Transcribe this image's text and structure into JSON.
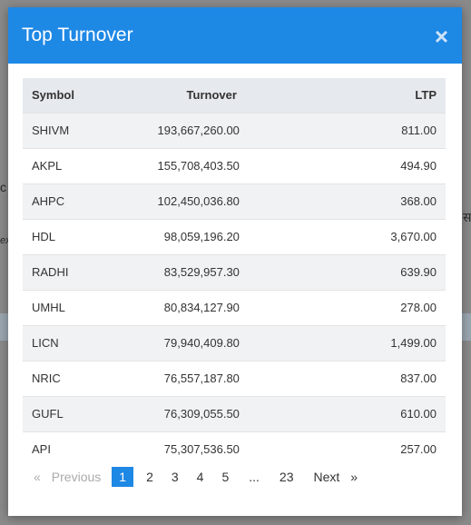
{
  "modal": {
    "title": "Top Turnover",
    "close_symbol": "×"
  },
  "table": {
    "columns": [
      "Symbol",
      "Turnover",
      "LTP"
    ],
    "rows": [
      {
        "symbol": "SHIVM",
        "turnover": "193,667,260.00",
        "ltp": "811.00"
      },
      {
        "symbol": "AKPL",
        "turnover": "155,708,403.50",
        "ltp": "494.90"
      },
      {
        "symbol": "AHPC",
        "turnover": "102,450,036.80",
        "ltp": "368.00"
      },
      {
        "symbol": "HDL",
        "turnover": "98,059,196.20",
        "ltp": "3,670.00"
      },
      {
        "symbol": "RADHI",
        "turnover": "83,529,957.30",
        "ltp": "639.90"
      },
      {
        "symbol": "UMHL",
        "turnover": "80,834,127.90",
        "ltp": "278.00"
      },
      {
        "symbol": "LICN",
        "turnover": "79,940,409.80",
        "ltp": "1,499.00"
      },
      {
        "symbol": "NRIC",
        "turnover": "76,557,187.80",
        "ltp": "837.00"
      },
      {
        "symbol": "GUFL",
        "turnover": "76,309,055.50",
        "ltp": "610.00"
      },
      {
        "symbol": "API",
        "turnover": "75,307,536.50",
        "ltp": "257.00"
      }
    ]
  },
  "pagination": {
    "first_arrow": "«",
    "previous": "Previous",
    "pages": [
      "1",
      "2",
      "3",
      "4",
      "5",
      "...",
      "23"
    ],
    "current": "1",
    "next": "Next",
    "last_arrow": "»"
  },
  "background": {
    "peek_left_1": "c",
    "peek_left_2": "ex.",
    "peek_right": "स"
  },
  "colors": {
    "header": "#1e88e5",
    "active_page": "#1e88e5"
  }
}
